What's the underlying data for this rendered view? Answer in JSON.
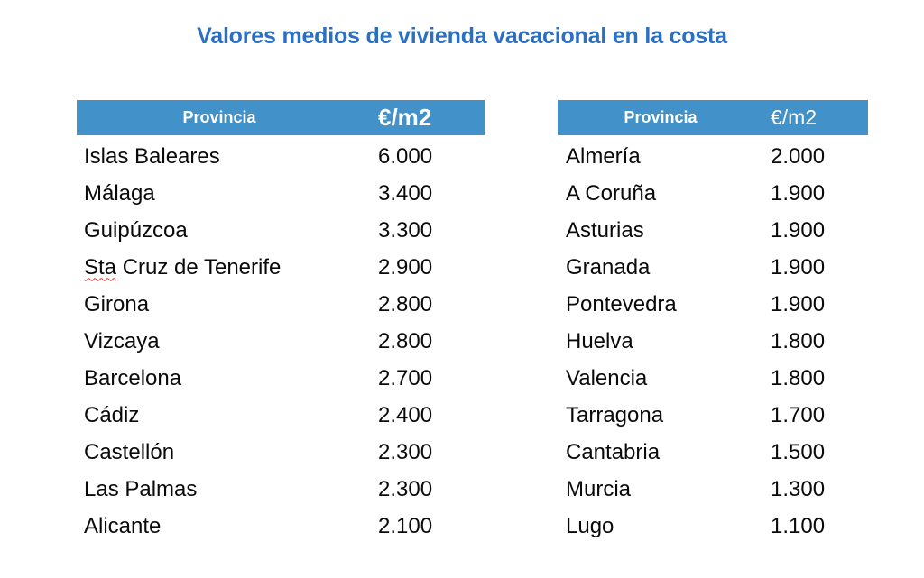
{
  "title": "Valores medios de vivienda vacacional en la costa",
  "colors": {
    "title_text": "#2b6fc2",
    "header_bg": "#4291c8",
    "header_text": "#ffffff",
    "body_text": "#0a0a0a",
    "spellcheck_underline": "#d13434"
  },
  "tables": [
    {
      "headers": {
        "province": "Provincia",
        "value": "€/m2"
      },
      "rows": [
        {
          "province": "Islas Baleares",
          "value": "6.000"
        },
        {
          "province": "Málaga",
          "value": "3.400"
        },
        {
          "province": "Guipúzcoa",
          "value": "3.300"
        },
        {
          "province": "Sta Cruz de Tenerife",
          "value": "2.900",
          "spellcheck_prefix": "Sta"
        },
        {
          "province": "Girona",
          "value": "2.800"
        },
        {
          "province": "Vizcaya",
          "value": "2.800"
        },
        {
          "province": "Barcelona",
          "value": "2.700"
        },
        {
          "province": "Cádiz",
          "value": "2.400"
        },
        {
          "province": "Castellón",
          "value": "2.300"
        },
        {
          "province": "Las Palmas",
          "value": "2.300"
        },
        {
          "province": "Alicante",
          "value": "2.100"
        }
      ]
    },
    {
      "headers": {
        "province": "Provincia",
        "value": "€/m2"
      },
      "rows": [
        {
          "province": "Almería",
          "value": "2.000"
        },
        {
          "province": "A Coruña",
          "value": "1.900"
        },
        {
          "province": "Asturias",
          "value": "1.900"
        },
        {
          "province": "Granada",
          "value": "1.900"
        },
        {
          "province": "Pontevedra",
          "value": "1.900"
        },
        {
          "province": "Huelva",
          "value": "1.800"
        },
        {
          "province": "Valencia",
          "value": "1.800"
        },
        {
          "province": "Tarragona",
          "value": "1.700"
        },
        {
          "province": "Cantabria",
          "value": "1.500"
        },
        {
          "province": "Murcia",
          "value": "1.300"
        },
        {
          "province": "Lugo",
          "value": "1.100"
        }
      ]
    }
  ]
}
